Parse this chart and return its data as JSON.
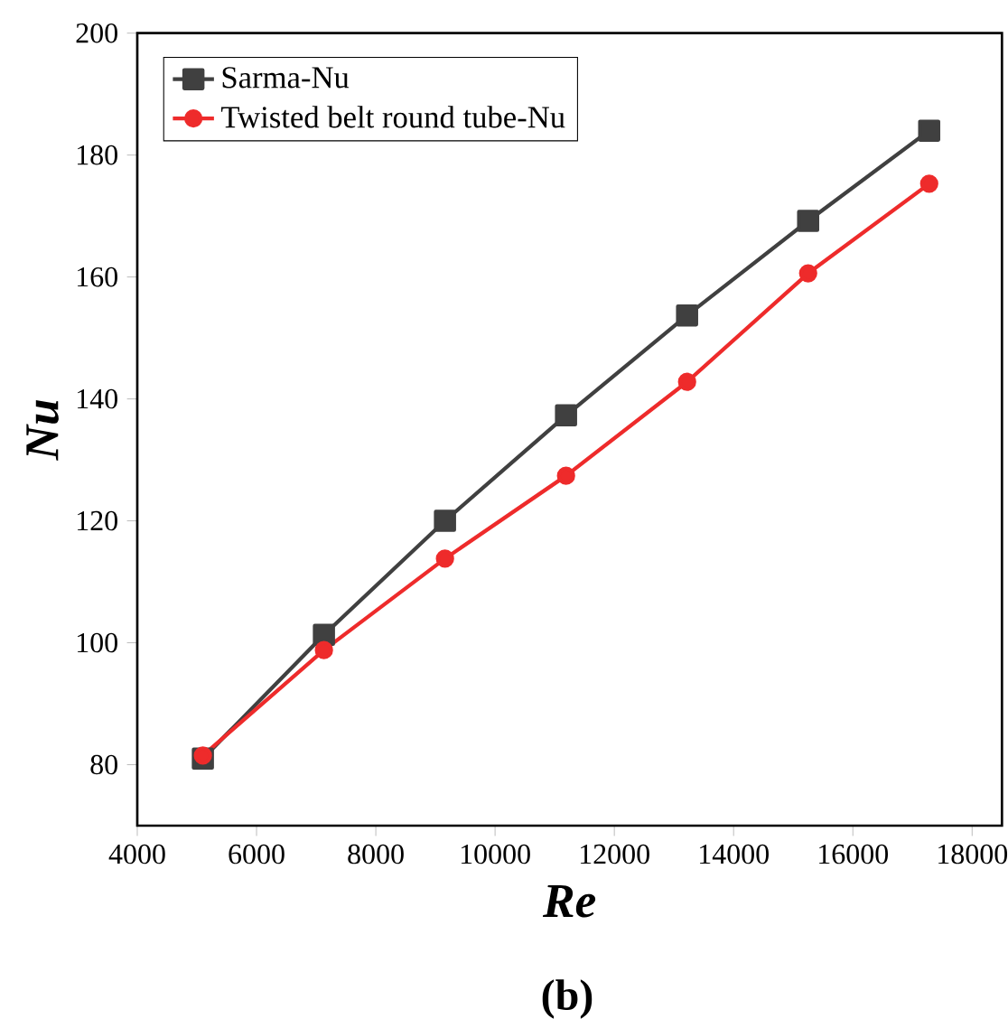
{
  "chart_data": {
    "type": "line",
    "xlabel": "Re",
    "ylabel": "Nu",
    "x": [
      5100,
      7130,
      9160,
      11190,
      13220,
      15250,
      17280
    ],
    "series": [
      {
        "name": "Sarma-Nu",
        "color": "#404040",
        "marker": "square",
        "values": [
          81,
          101.3,
          120,
          137.3,
          153.7,
          169.2,
          184
        ]
      },
      {
        "name": "Twisted belt round tube-Nu",
        "color": "#ee2b2b",
        "marker": "circle",
        "values": [
          81.5,
          98.8,
          113.8,
          127.4,
          142.8,
          160.6,
          175.3
        ]
      }
    ],
    "xlim": [
      4000,
      18500
    ],
    "ylim": [
      70,
      200
    ],
    "xticks": [
      4000,
      6000,
      8000,
      10000,
      12000,
      14000,
      16000,
      18000
    ],
    "yticks": [
      80,
      100,
      120,
      140,
      160,
      180,
      200
    ],
    "legend": "top left",
    "grid": false,
    "annotations": [
      "(b)"
    ]
  }
}
